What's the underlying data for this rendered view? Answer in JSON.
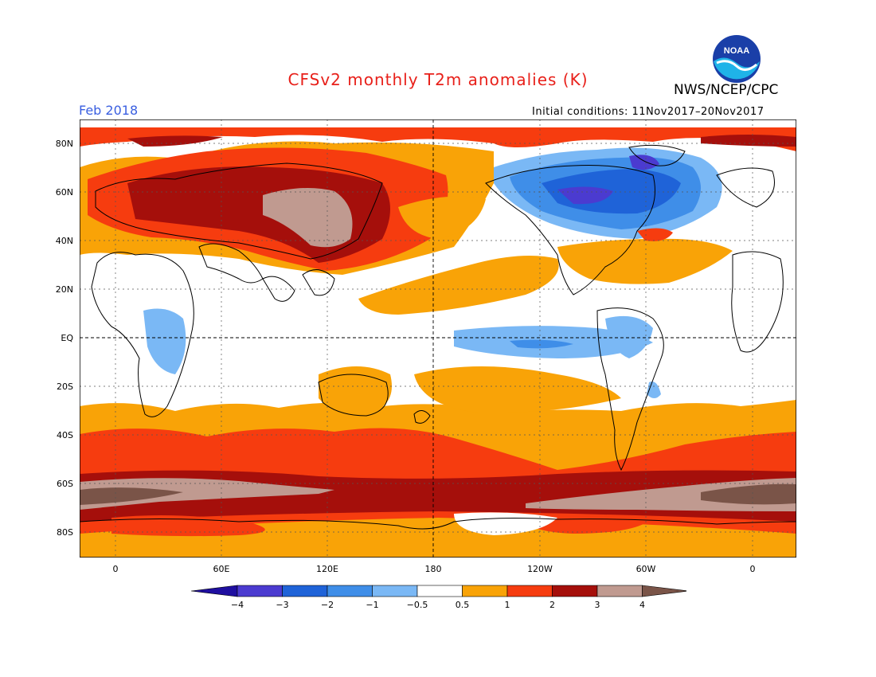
{
  "header": {
    "title": "CFSv2 monthly T2m anomalies (K)",
    "agency": "NWS/NCEP/CPC",
    "logo_text": "NOAA",
    "month": "Feb 2018",
    "initial_conditions": "Initial conditions: 11Nov2017–20Nov2017"
  },
  "map": {
    "lat_labels": [
      "80N",
      "60N",
      "40N",
      "20N",
      "EQ",
      "20S",
      "40S",
      "60S",
      "80S"
    ],
    "lon_labels": [
      "0",
      "60E",
      "120E",
      "180",
      "120W",
      "60W",
      "0"
    ]
  },
  "colorbar": {
    "labels": [
      "−4",
      "−3",
      "−2",
      "−1",
      "−0.5",
      "0.5",
      "1",
      "2",
      "3",
      "4"
    ],
    "colors": [
      "#1f0fa0",
      "#4b3bd0",
      "#1f63d8",
      "#3f8ee8",
      "#7ab8f5",
      "#ffffff",
      "#f9a307",
      "#f63c0f",
      "#a50f0b",
      "#c09a90",
      "#7a5448"
    ]
  }
}
